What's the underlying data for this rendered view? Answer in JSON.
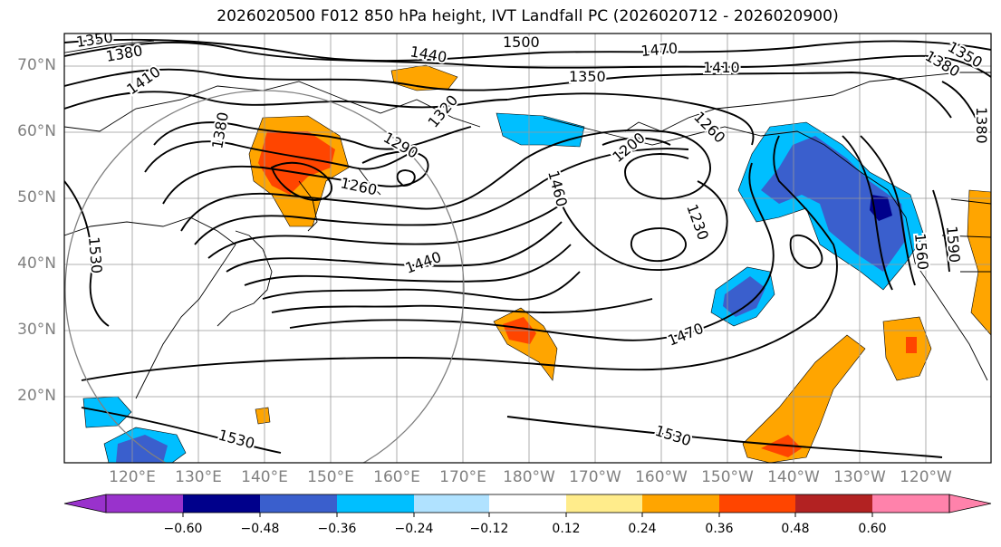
{
  "title": "2026020500 F012 850 hPa height, IVT Landfall PC (2026020712 - 2026020900)",
  "lat_labels": [
    "70°N",
    "60°N",
    "50°N",
    "40°N",
    "30°N",
    "20°N"
  ],
  "lon_labels": [
    "120°E",
    "130°E",
    "140°E",
    "150°E",
    "160°E",
    "170°E",
    "180°W",
    "170°W",
    "160°W",
    "150°W",
    "140°W",
    "130°W",
    "120°W"
  ],
  "contour_labels": [
    "1350",
    "1380",
    "1410",
    "1440",
    "1500",
    "1470",
    "1350",
    "1410",
    "1380",
    "1350",
    "1380",
    "1320",
    "1290",
    "1260",
    "1200",
    "1260",
    "1460",
    "1230",
    "1440",
    "1470",
    "1530",
    "1530",
    "1530",
    "1560",
    "1590",
    "1380"
  ],
  "colorbar": {
    "ticks": [
      "−0.60",
      "−0.48",
      "−0.36",
      "−0.24",
      "−0.12",
      "0.12",
      "0.24",
      "0.36",
      "0.48",
      "0.60"
    ],
    "colors": [
      "#9932CC",
      "#00008B",
      "#3A5FCD",
      "#00BFFF",
      "#B0E2FF",
      "#FFFFFF",
      "#FFEC8B",
      "#FFA500",
      "#FF4500",
      "#B22222",
      "#FF82AB"
    ]
  }
}
